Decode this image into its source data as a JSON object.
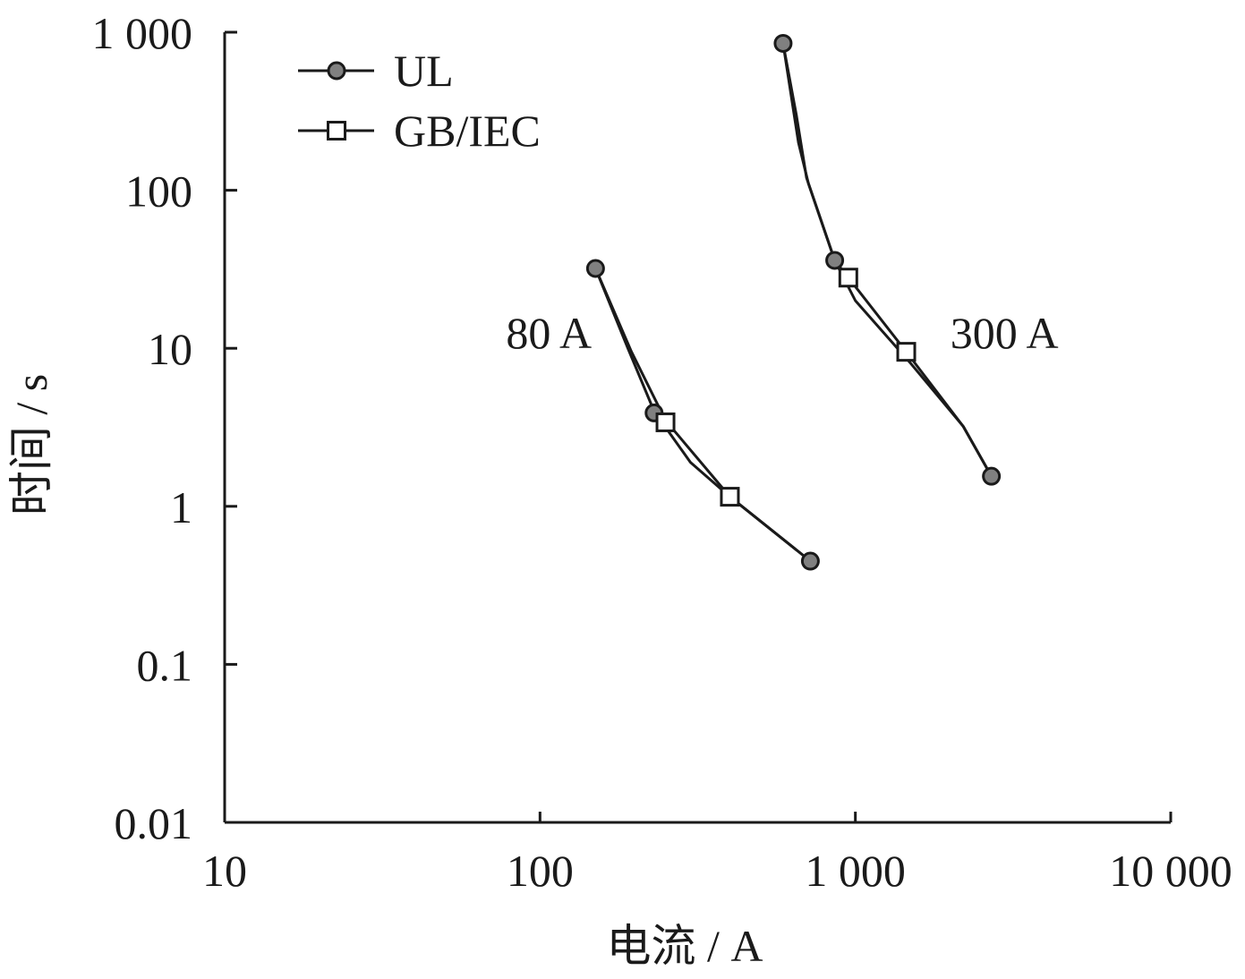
{
  "chart_data": {
    "type": "line",
    "title": "",
    "xlabel": "电流 / A",
    "ylabel": "时间 / s",
    "xscale": "log",
    "yscale": "log",
    "xlim": [
      10,
      10000
    ],
    "ylim": [
      0.01,
      1000
    ],
    "x_ticks": [
      {
        "value": 10,
        "label": "10"
      },
      {
        "value": 100,
        "label": "100"
      },
      {
        "value": 1000,
        "label": "1 000"
      },
      {
        "value": 10000,
        "label": "10 000"
      }
    ],
    "y_ticks": [
      {
        "value": 0.01,
        "label": "0.01"
      },
      {
        "value": 0.1,
        "label": "0.1"
      },
      {
        "value": 1,
        "label": "1"
      },
      {
        "value": 10,
        "label": "10"
      },
      {
        "value": 100,
        "label": "100"
      },
      {
        "value": 1000,
        "label": "1 000"
      }
    ],
    "grid": false,
    "legend_position": "top-left",
    "series": [
      {
        "name": "UL",
        "marker": "circle",
        "marker_color": "#808080",
        "line_color": "#1a1a1a",
        "curves": [
          {
            "line": [
              [
                150,
                32
              ],
              [
                190,
                10
              ],
              [
                230,
                4.0
              ],
              [
                300,
                1.9
              ],
              [
                400,
                1.15
              ],
              [
                720,
                0.45
              ]
            ],
            "markers": [
              [
                150,
                32
              ],
              [
                230,
                3.9
              ],
              [
                720,
                0.45
              ]
            ]
          },
          {
            "line": [
              [
                590,
                850
              ],
              [
                660,
                200
              ],
              [
                710,
                110
              ],
              [
                860,
                36
              ],
              [
                1000,
                20
              ],
              [
                1500,
                8
              ],
              [
                2200,
                3.2
              ],
              [
                2700,
                1.55
              ]
            ],
            "markers": [
              [
                590,
                850
              ],
              [
                860,
                36
              ],
              [
                2700,
                1.55
              ]
            ]
          }
        ]
      },
      {
        "name": "GB/IEC",
        "marker": "square",
        "marker_color": "#ffffff",
        "line_color": "#1a1a1a",
        "curves": [
          {
            "line": [
              [
                150,
                32
              ],
              [
                195,
                9.5
              ],
              [
                250,
                3.5
              ],
              [
                400,
                1.15
              ],
              [
                720,
                0.45
              ]
            ],
            "markers": [
              [
                250,
                3.4
              ],
              [
                400,
                1.15
              ]
            ]
          },
          {
            "line": [
              [
                590,
                850
              ],
              [
                650,
                300
              ],
              [
                700,
                120
              ],
              [
                860,
                36
              ],
              [
                950,
                28
              ],
              [
                1450,
                9.5
              ],
              [
                2200,
                3.2
              ],
              [
                2700,
                1.55
              ]
            ],
            "markers": [
              [
                950,
                28
              ],
              [
                1450,
                9.5
              ]
            ]
          }
        ]
      }
    ],
    "annotations": [
      {
        "text": "80 A",
        "x": 78,
        "y": 10
      },
      {
        "text": "300 A",
        "x": 2000,
        "y": 10
      }
    ]
  }
}
